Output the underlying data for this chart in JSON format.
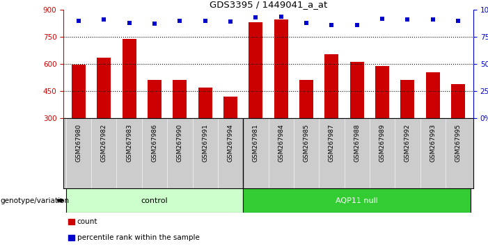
{
  "title": "GDS3395 / 1449041_a_at",
  "samples": [
    "GSM267980",
    "GSM267982",
    "GSM267983",
    "GSM267986",
    "GSM267990",
    "GSM267991",
    "GSM267994",
    "GSM267981",
    "GSM267984",
    "GSM267985",
    "GSM267987",
    "GSM267988",
    "GSM267989",
    "GSM267992",
    "GSM267993",
    "GSM267995"
  ],
  "counts": [
    598,
    635,
    740,
    510,
    510,
    470,
    420,
    830,
    845,
    510,
    655,
    610,
    590,
    510,
    555,
    490
  ],
  "percentile_ranks": [
    90,
    91,
    88,
    87,
    90,
    90,
    89,
    93,
    94,
    88,
    86,
    86,
    92,
    91,
    91,
    90
  ],
  "groups": [
    "control",
    "control",
    "control",
    "control",
    "control",
    "control",
    "control",
    "AQP11 null",
    "AQP11 null",
    "AQP11 null",
    "AQP11 null",
    "AQP11 null",
    "AQP11 null",
    "AQP11 null",
    "AQP11 null",
    "AQP11 null"
  ],
  "control_color": "#ccffcc",
  "aqp11_color": "#33cc33",
  "bar_color": "#cc0000",
  "dot_color": "#0000cc",
  "ylim_left": [
    300,
    900
  ],
  "ylim_right": [
    0,
    100
  ],
  "yticks_left": [
    300,
    450,
    600,
    750,
    900
  ],
  "yticks_right": [
    0,
    25,
    50,
    75,
    100
  ],
  "grid_values": [
    450,
    600,
    750
  ],
  "legend_count": "count",
  "legend_percentile": "percentile rank within the sample",
  "bar_width": 0.55,
  "label_area_bg": "#cccccc",
  "n_control": 7,
  "n_aqp11": 9
}
